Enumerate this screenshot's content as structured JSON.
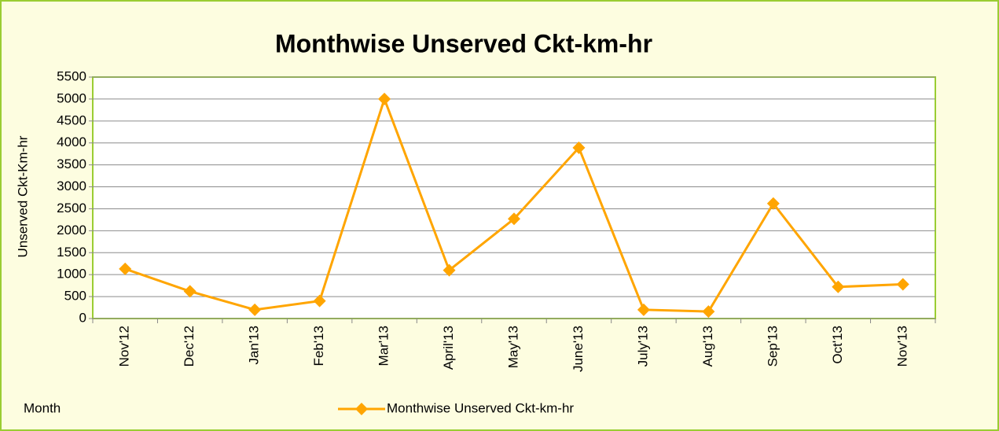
{
  "chart_data": {
    "type": "line",
    "title": "Monthwise Unserved Ckt-km-hr",
    "x_label": "Month",
    "y_label": "Unserved Ckt-Km-hr",
    "categories": [
      "Nov'12",
      "Dec'12",
      "Jan'13",
      "Feb'13",
      "Mar'13",
      "April'13",
      "May'13",
      "June'13",
      "July'13",
      "Aug'13",
      "Sep'13",
      "Oct'13",
      "Nov'13"
    ],
    "series": [
      {
        "name": "Monthwise Unserved Ckt-km-hr",
        "color": "#ffa500",
        "values": [
          1130,
          620,
          200,
          400,
          5000,
          1100,
          2270,
          3890,
          200,
          160,
          2620,
          720,
          780
        ]
      }
    ],
    "ylim": [
      0,
      5500
    ],
    "yticks": [
      0,
      500,
      1000,
      1500,
      2000,
      2500,
      3000,
      3500,
      4000,
      4500,
      5000,
      5500
    ],
    "grid": true
  }
}
